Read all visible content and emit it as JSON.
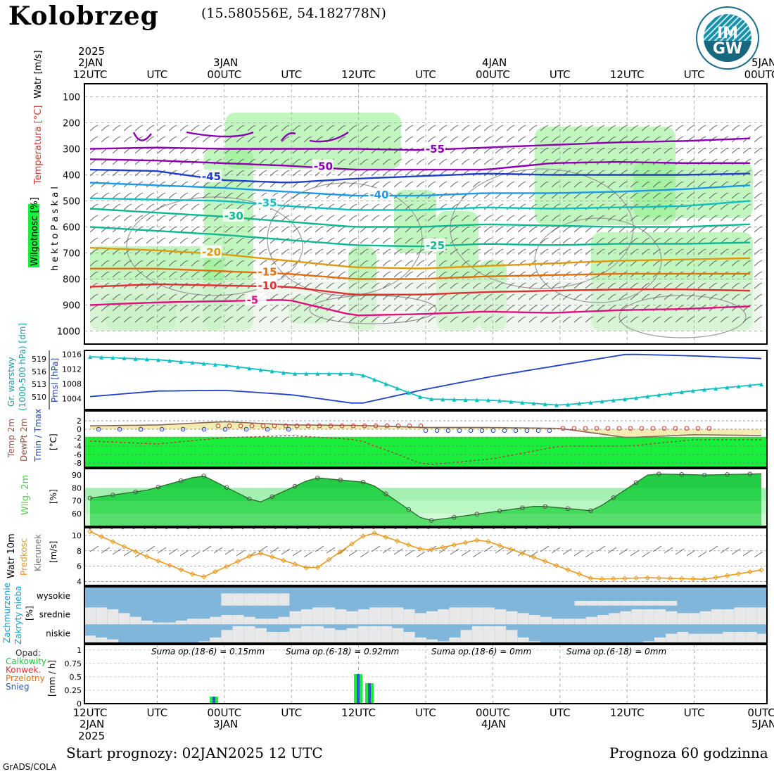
{
  "header": {
    "station": "Kolobrzeg",
    "coords": "(15.580556E, 54.182778N)",
    "logo_text_top": "IM",
    "logo_text_bottom": "GW"
  },
  "footer": {
    "start": "Start prognozy: 02JAN2025 12 UTC",
    "prognoza": "Prognoza 60 godzinna",
    "grads": "GrADS/COLA"
  },
  "time_axis": {
    "top_year": "2025",
    "top_labels": [
      "2JAN",
      "3JAN",
      "4JAN",
      "5JAN"
    ],
    "ticks": [
      "12UTC",
      "UTC",
      "00UTC",
      "UTC",
      "12UTC",
      "UTC",
      "00UTC",
      "UTC",
      "12UTC",
      "UTC",
      "00UTC"
    ],
    "bottom_ticks": [
      "12UTC",
      "UTC",
      "00UTC",
      "UTC",
      "12UTC",
      "UTC",
      "00UTC",
      "UTC",
      "12UTC",
      "UTC",
      "0UTC"
    ],
    "bottom_dates": [
      "2JAN",
      "3JAN",
      "4JAN",
      "5JAN"
    ],
    "bottom_year": "2025"
  },
  "colors": {
    "purple": "#8b00b0",
    "blue_dark": "#2040c8",
    "blue": "#1c9ae8",
    "cyan": "#10c0c0",
    "teal": "#10b890",
    "orange": "#e09a10",
    "orange_dark": "#e07010",
    "red": "#e03030",
    "pink": "#e01080",
    "humidity_green": "#8ef08a",
    "cloud_blue": "#7fb6da",
    "bright_green": "#19ee3a"
  },
  "chart_data": [
    {
      "id": "upper_air",
      "type": "heatmap",
      "ylabel": "h e k t o P a s k a l",
      "side_labels": [
        "Watr [m/s]",
        "Temperatura [°C]",
        "Wilgotnosc [%]"
      ],
      "y_ticks": [
        100,
        200,
        300,
        400,
        500,
        600,
        700,
        800,
        900,
        1000
      ],
      "ylim": [
        1050,
        50
      ],
      "isotherms": [
        {
          "label": "-55",
          "color": "#8b00b0",
          "p": [
            300,
            295,
            300,
            300,
            300,
            305,
            295,
            285,
            275,
            270,
            260
          ]
        },
        {
          "label": "-50",
          "color": "#8b00b0",
          "p": [
            340,
            345,
            355,
            365,
            380,
            380,
            380,
            355,
            350,
            355,
            355
          ]
        },
        {
          "label": "-45",
          "color": "#2040c8",
          "p": [
            380,
            385,
            420,
            430,
            415,
            405,
            395,
            400,
            400,
            400,
            395
          ]
        },
        {
          "label": "-40",
          "color": "#1c9ae8",
          "p": [
            430,
            440,
            450,
            465,
            480,
            480,
            470,
            470,
            465,
            455,
            440
          ]
        },
        {
          "label": "-35",
          "color": "#10c0c0",
          "p": [
            490,
            495,
            500,
            520,
            535,
            535,
            525,
            530,
            525,
            520,
            500
          ]
        },
        {
          "label": "-30",
          "color": "#10b890",
          "p": [
            530,
            545,
            560,
            580,
            600,
            600,
            590,
            595,
            600,
            600,
            590
          ]
        },
        {
          "label": "-25",
          "color": "#10b890",
          "p": [
            600,
            615,
            630,
            650,
            670,
            675,
            665,
            670,
            665,
            665,
            660
          ]
        },
        {
          "label": "-20",
          "color": "#e09a10",
          "p": [
            680,
            690,
            705,
            730,
            755,
            760,
            750,
            740,
            730,
            725,
            720
          ]
        },
        {
          "label": "-15",
          "color": "#e07010",
          "p": [
            760,
            760,
            770,
            780,
            800,
            800,
            790,
            785,
            780,
            780,
            780
          ]
        },
        {
          "label": "-10",
          "color": "#e03030",
          "p": [
            830,
            820,
            825,
            830,
            860,
            860,
            850,
            845,
            840,
            840,
            845
          ]
        },
        {
          "label": "-5",
          "color": "#e01080",
          "p": [
            900,
            890,
            885,
            880,
            940,
            935,
            925,
            930,
            920,
            915,
            905
          ]
        }
      ]
    },
    {
      "id": "pressure",
      "type": "line",
      "left_labels": [
        "Gr. warstwy",
        "(1000-500 hPa) [dm]"
      ],
      "right_label": "Pmsl [hPa]",
      "y_ticks_left": [
        510,
        513,
        516,
        519
      ],
      "y_ticks_right": [
        1004,
        1008,
        1012,
        1016
      ],
      "series": [
        {
          "name": "Pmsl [hPa]",
          "values": [
            1004.5,
            1006,
            1006.2,
            1005,
            1002.5,
            1006.5,
            1010,
            1013,
            1016,
            1015.5,
            1014.8
          ]
        },
        {
          "name": "Gr. warstwy (1000-500 hPa) [dm]",
          "values": [
            519.5,
            518.8,
            517.5,
            515.5,
            515.5,
            509.5,
            509.2,
            508,
            509.5,
            511.5,
            513
          ]
        }
      ]
    },
    {
      "id": "temperature",
      "type": "area",
      "left_labels": [
        "Temp 2m",
        "DewPt 2m",
        "Tmin / Tmax"
      ],
      "ylabel": "[°C]",
      "y_ticks": [
        2,
        0,
        -2,
        -4,
        -6,
        -8
      ],
      "series": [
        {
          "name": "Temp 2m",
          "values": [
            0.8,
            1.0,
            1.8,
            1.0,
            0.9,
            0.4,
            0.4,
            0.2,
            -2.0,
            -1.3,
            -1.5
          ]
        },
        {
          "name": "DewPt 2m",
          "values": [
            -2.8,
            -3.5,
            -2.0,
            -1.5,
            -2.5,
            -8.5,
            -7.0,
            -4.0,
            -4.0,
            -2.5,
            -2.5
          ]
        }
      ]
    },
    {
      "id": "humidity",
      "type": "area",
      "left_label": "Wilg. 2m",
      "ylabel": "[%]",
      "y_ticks": [
        60,
        70,
        80,
        90
      ],
      "series": [
        {
          "name": "Wilg. 2m",
          "values": [
            72,
            78,
            90,
            68,
            88,
            84,
            54,
            60,
            66,
            62,
            91,
            90,
            91
          ]
        }
      ]
    },
    {
      "id": "wind",
      "type": "line",
      "left_labels": [
        "Watr 10m",
        "Predkosc",
        "Kierunek"
      ],
      "ylabel": "[m/s]",
      "y_ticks": [
        4,
        6,
        8,
        10
      ],
      "series": [
        {
          "name": "Predkosc",
          "values": [
            10.5,
            7.3,
            4.5,
            7.8,
            5.5,
            10.5,
            8.0,
            9.5,
            7.0,
            4.3,
            4.5,
            4.3,
            5.5
          ]
        }
      ]
    },
    {
      "id": "clouds",
      "type": "bar",
      "left_labels": [
        "Zachmurzenie",
        "Zakryty nieba"
      ],
      "ylabel": "[%]",
      "categories": [
        "wysokie",
        "srednie",
        "niskie"
      ]
    },
    {
      "id": "precip",
      "type": "bar",
      "left_labels": [
        "Opad:",
        "Calkowity",
        "Konwek.",
        "Przelotny",
        "Snieg"
      ],
      "ylabel": "[mm / h]",
      "y_ticks": [
        "1",
        "0.75",
        "0.5",
        "0.25",
        "0"
      ],
      "sums": [
        "Suma op.(18-6) = 0.15mm",
        "Suma op.(6-18) = 0.92mm",
        "Suma op.(18-6) = 0mm",
        "Suma op.(6-18) = 0mm"
      ],
      "values": [
        0.13,
        0.55,
        0.38
      ]
    }
  ]
}
